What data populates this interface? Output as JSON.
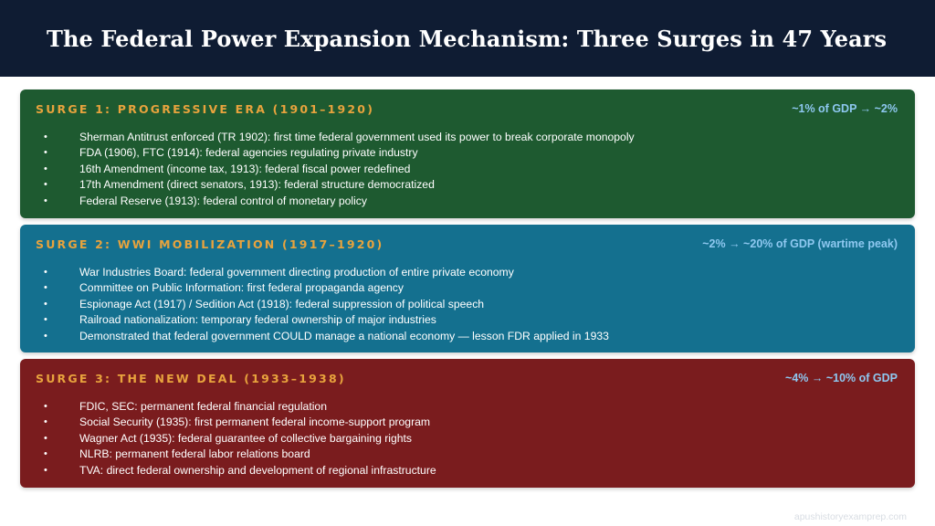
{
  "title": "The Federal Power Expansion Mechanism: Three Surges in 47 Years",
  "surges": [
    {
      "heading": "SURGE 1: PROGRESSIVE ERA  (1901–1920)",
      "stat": "~1% of GDP → ~2%",
      "items": [
        "Sherman Antitrust enforced (TR 1902): first time federal government used its power to break corporate monopoly",
        "FDA (1906), FTC (1914): federal agencies regulating private industry",
        "16th Amendment (income tax, 1913): federal fiscal power redefined",
        "17th Amendment (direct senators, 1913): federal structure democratized",
        "Federal Reserve (1913): federal control of monetary policy"
      ]
    },
    {
      "heading": "SURGE 2: WWI MOBILIZATION  (1917–1920)",
      "stat": "~2% → ~20% of GDP (wartime peak)",
      "items": [
        "War Industries Board: federal government directing production of entire private economy",
        "Committee on Public Information: first federal propaganda agency",
        "Espionage Act (1917) / Sedition Act (1918): federal suppression of political speech",
        "Railroad nationalization: temporary federal ownership of major industries",
        "Demonstrated that federal government COULD manage a national economy — lesson FDR applied in 1933"
      ]
    },
    {
      "heading": "SURGE 3: THE NEW DEAL  (1933–1938)",
      "stat": "~4% → ~10% of GDP",
      "items": [
        "FDIC, SEC: permanent federal financial regulation",
        "Social Security (1935): first permanent federal income-support program",
        "Wagner Act (1935): federal guarantee of collective bargaining rights",
        "NLRB: permanent federal labor relations board",
        "TVA: direct federal ownership and development of regional infrastructure"
      ]
    }
  ],
  "bullet_char": "•",
  "footer": "apushistoryexamprep.com",
  "colors": {
    "header_bg": "#0f1c33",
    "surge1_bg": "#1e5a30",
    "surge2_bg": "#14708f",
    "surge3_bg": "#7a1c1e",
    "heading_accent": "#e8a33d",
    "stat_accent": "#8ec8f0"
  }
}
